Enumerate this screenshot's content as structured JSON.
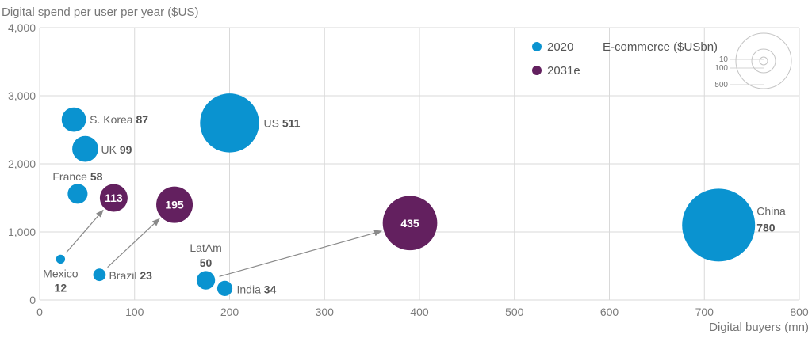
{
  "chart_data": {
    "type": "scatter",
    "subtype": "bubble",
    "xlabel": "Digital buyers (mn)",
    "ylabel": "Digital spend per user per year ($US)",
    "xlim": [
      0,
      800
    ],
    "ylim": [
      0,
      4000
    ],
    "x_ticks": [
      "0",
      "100",
      "200",
      "300",
      "400",
      "500",
      "600",
      "700",
      "800"
    ],
    "y_ticks": [
      "0",
      "1,000",
      "2,000",
      "3,000",
      "4,000"
    ],
    "grid": true,
    "size_legend_title": "E-commerce ($USbn)",
    "size_legend_values": [
      "10",
      "100",
      "500"
    ],
    "colors": {
      "2020": "#0a93d0",
      "2031e": "#63205f",
      "arrow": "#8a8a8a",
      "grid": "#d9d9d9"
    },
    "series": [
      {
        "name": "2020",
        "points": [
          {
            "label": "US",
            "x": 200,
            "y": 2600,
            "size": "511"
          },
          {
            "label": "China",
            "x": 715,
            "y": 1100,
            "size": "780"
          },
          {
            "label": "S. Korea",
            "x": 36,
            "y": 2650,
            "size": "87"
          },
          {
            "label": "UK",
            "x": 48,
            "y": 2220,
            "size": "99"
          },
          {
            "label": "France",
            "x": 40,
            "y": 1560,
            "size": "58"
          },
          {
            "label": "Mexico",
            "x": 22,
            "y": 600,
            "size": "12"
          },
          {
            "label": "Brazil",
            "x": 63,
            "y": 370,
            "size": "23"
          },
          {
            "label": "LatAm",
            "x": 175,
            "y": 290,
            "size": "50"
          },
          {
            "label": "India",
            "x": 195,
            "y": 170,
            "size": "34"
          }
        ]
      },
      {
        "name": "2031e",
        "points": [
          {
            "label": "",
            "x": 78,
            "y": 1500,
            "size": "113"
          },
          {
            "label": "",
            "x": 142,
            "y": 1400,
            "size": "195"
          },
          {
            "label": "",
            "x": 390,
            "y": 1130,
            "size": "435"
          }
        ]
      }
    ]
  }
}
